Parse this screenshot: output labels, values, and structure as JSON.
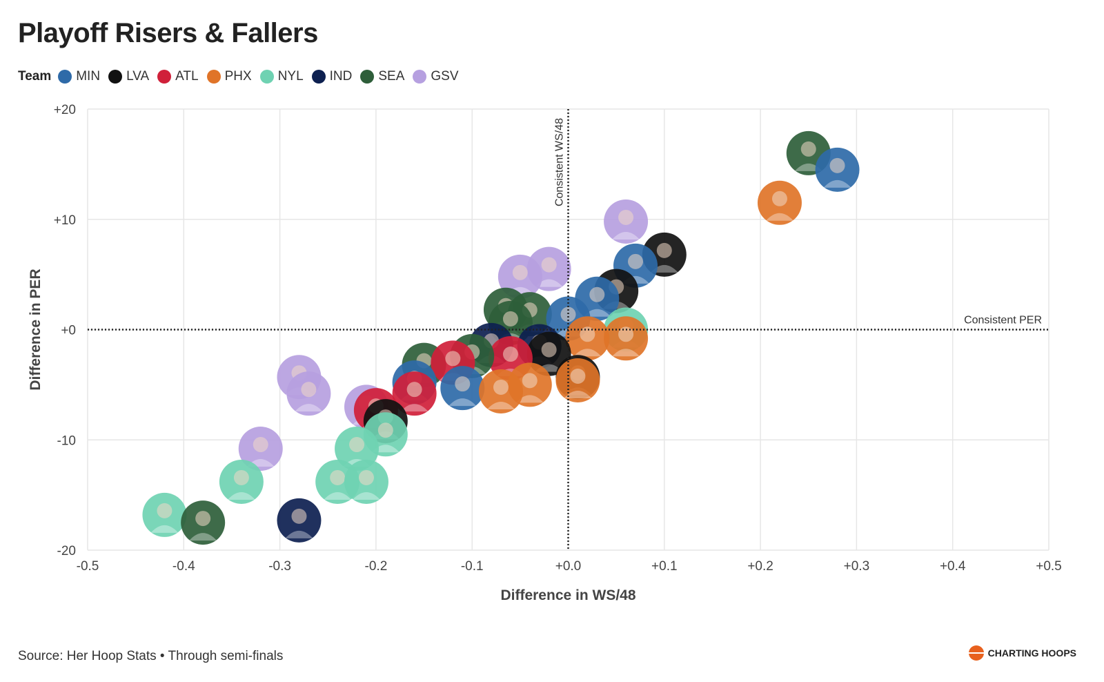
{
  "title": "Playoff Risers & Fallers",
  "legend": {
    "title": "Team",
    "items": [
      {
        "label": "MIN",
        "color": "#2e6aa8"
      },
      {
        "label": "LVA",
        "color": "#111111"
      },
      {
        "label": "ATL",
        "color": "#d0203a"
      },
      {
        "label": "PHX",
        "color": "#e07428"
      },
      {
        "label": "NYL",
        "color": "#6fd2b2"
      },
      {
        "label": "IND",
        "color": "#0d2050"
      },
      {
        "label": "SEA",
        "color": "#2e5e3a"
      },
      {
        "label": "GSV",
        "color": "#b6a0e0"
      }
    ]
  },
  "reference_labels": {
    "vertical": "Consistent WS/48",
    "horizontal": "Consistent PER"
  },
  "footer": {
    "source": "Source: Her Hoop Stats • Through semi-finals",
    "brand": "CHARTING HOOPS"
  },
  "chart_data": {
    "type": "scatter",
    "title": "Playoff Risers & Fallers",
    "xlabel": "Difference in WS/48",
    "ylabel": "Difference in PER",
    "xlim": [
      -0.5,
      0.5
    ],
    "ylim": [
      -20,
      20
    ],
    "x_ticks": [
      -0.5,
      -0.4,
      -0.3,
      -0.2,
      -0.1,
      0.0,
      0.1,
      0.2,
      0.3,
      0.4,
      0.5
    ],
    "x_tick_labels": [
      "-0.5",
      "-0.4",
      "-0.3",
      "-0.2",
      "-0.1",
      "+0.0",
      "+0.1",
      "+0.2",
      "+0.3",
      "+0.4",
      "+0.5"
    ],
    "y_ticks": [
      -20,
      -10,
      0,
      10,
      20
    ],
    "y_tick_labels": [
      "-20",
      "-10",
      "+0",
      "+10",
      "+20"
    ],
    "grid": true,
    "reference_lines": {
      "x": 0,
      "y": 0
    },
    "points": [
      {
        "team": "SEA",
        "x": 0.25,
        "y": 16.0
      },
      {
        "team": "MIN",
        "x": 0.28,
        "y": 14.5
      },
      {
        "team": "PHX",
        "x": 0.22,
        "y": 11.5
      },
      {
        "team": "GSV",
        "x": 0.06,
        "y": 9.8
      },
      {
        "team": "LVA",
        "x": 0.1,
        "y": 6.8
      },
      {
        "team": "MIN",
        "x": 0.07,
        "y": 5.8
      },
      {
        "team": "GSV",
        "x": -0.02,
        "y": 5.5
      },
      {
        "team": "GSV",
        "x": -0.05,
        "y": 4.8
      },
      {
        "team": "LVA",
        "x": 0.05,
        "y": 3.5
      },
      {
        "team": "MIN",
        "x": 0.03,
        "y": 2.8
      },
      {
        "team": "SEA",
        "x": -0.065,
        "y": 1.8
      },
      {
        "team": "SEA",
        "x": -0.04,
        "y": 1.4
      },
      {
        "team": "SEA",
        "x": -0.06,
        "y": 0.6
      },
      {
        "team": "MIN",
        "x": 0.0,
        "y": 1.0
      },
      {
        "team": "NYL",
        "x": 0.06,
        "y": 0.0
      },
      {
        "team": "PHX",
        "x": 0.06,
        "y": -0.8
      },
      {
        "team": "PHX",
        "x": 0.02,
        "y": -0.8
      },
      {
        "team": "IND",
        "x": -0.08,
        "y": -1.4
      },
      {
        "team": "IND",
        "x": -0.03,
        "y": -1.5
      },
      {
        "team": "LVA",
        "x": -0.02,
        "y": -2.2
      },
      {
        "team": "ATL",
        "x": -0.06,
        "y": -2.6
      },
      {
        "team": "SEA",
        "x": -0.1,
        "y": -2.4
      },
      {
        "team": "SEA",
        "x": -0.15,
        "y": -3.2
      },
      {
        "team": "ATL",
        "x": -0.12,
        "y": -3.0
      },
      {
        "team": "MIN",
        "x": -0.16,
        "y": -4.8
      },
      {
        "team": "MIN",
        "x": -0.11,
        "y": -5.3
      },
      {
        "team": "ATL",
        "x": -0.16,
        "y": -5.8
      },
      {
        "team": "LVA",
        "x": 0.01,
        "y": -4.3
      },
      {
        "team": "PHX",
        "x": 0.01,
        "y": -4.6
      },
      {
        "team": "PHX",
        "x": -0.04,
        "y": -5.0
      },
      {
        "team": "PHX",
        "x": -0.07,
        "y": -5.6
      },
      {
        "team": "GSV",
        "x": -0.28,
        "y": -4.3
      },
      {
        "team": "GSV",
        "x": -0.27,
        "y": -5.8
      },
      {
        "team": "GSV",
        "x": -0.21,
        "y": -7.0
      },
      {
        "team": "ATL",
        "x": -0.2,
        "y": -7.3
      },
      {
        "team": "LVA",
        "x": -0.19,
        "y": -8.3
      },
      {
        "team": "NYL",
        "x": -0.19,
        "y": -9.5
      },
      {
        "team": "GSV",
        "x": -0.32,
        "y": -10.8
      },
      {
        "team": "NYL",
        "x": -0.22,
        "y": -10.8
      },
      {
        "team": "NYL",
        "x": -0.34,
        "y": -13.8
      },
      {
        "team": "NYL",
        "x": -0.24,
        "y": -13.8
      },
      {
        "team": "NYL",
        "x": -0.21,
        "y": -13.8
      },
      {
        "team": "NYL",
        "x": -0.42,
        "y": -16.8
      },
      {
        "team": "SEA",
        "x": -0.38,
        "y": -17.5
      },
      {
        "team": "IND",
        "x": -0.28,
        "y": -17.3
      }
    ]
  }
}
